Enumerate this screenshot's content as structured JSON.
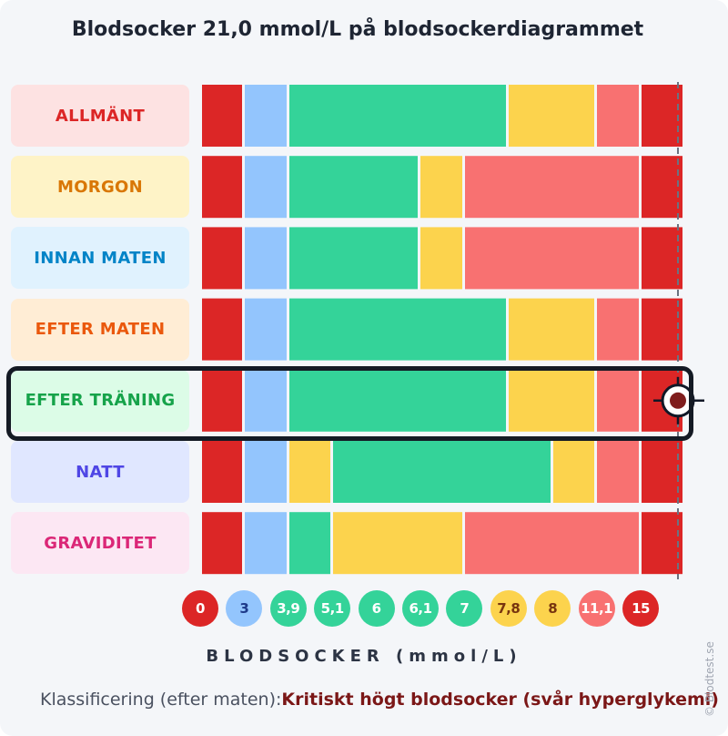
{
  "title": "Blodsocker 21,0 mmol/L på blodsockerdiagrammet",
  "xlabel": "BLODSOCKER (mmol/L)",
  "classification": {
    "label": "Klassificering (efter maten):",
    "value": "Kritiskt högt blodsocker (svår hyperglykemi)"
  },
  "watermark": "© Blodtest.se",
  "colors": {
    "red": "#dc2626",
    "blue": "#93c5fd",
    "green": "#34d399",
    "yellow": "#fcd34d",
    "salmon": "#f87171",
    "marker": "#7f1d1d"
  },
  "chart_data": {
    "type": "bar",
    "orientation": "horizontal-segmented",
    "value": 21.0,
    "unit": "mmol/L",
    "highlighted_row": "EFTER TRÄNING",
    "ticks": [
      {
        "label": "0",
        "color": "red"
      },
      {
        "label": "3",
        "color": "blue"
      },
      {
        "label": "3,9",
        "color": "green"
      },
      {
        "label": "5,1",
        "color": "green"
      },
      {
        "label": "6",
        "color": "green"
      },
      {
        "label": "6,1",
        "color": "green"
      },
      {
        "label": "7",
        "color": "green"
      },
      {
        "label": "7,8",
        "color": "yellow"
      },
      {
        "label": "8",
        "color": "yellow"
      },
      {
        "label": "11,1",
        "color": "salmon"
      },
      {
        "label": "15",
        "color": "red"
      }
    ],
    "rows": [
      {
        "label": "ALLMÄNT",
        "text_color": "#dc2626",
        "bg": "#fde2e2",
        "segments": [
          [
            "0",
            "3",
            "red"
          ],
          [
            "3",
            "3,9",
            "blue"
          ],
          [
            "3,9",
            "7,8",
            "green"
          ],
          [
            "7,8",
            "11,1",
            "yellow"
          ],
          [
            "11,1",
            "15",
            "salmon"
          ],
          [
            "15",
            "max",
            "red"
          ]
        ]
      },
      {
        "label": "MORGON",
        "text_color": "#d97706",
        "bg": "#fef3c7",
        "segments": [
          [
            "0",
            "3",
            "red"
          ],
          [
            "3",
            "3,9",
            "blue"
          ],
          [
            "3,9",
            "6",
            "green"
          ],
          [
            "6",
            "7",
            "yellow"
          ],
          [
            "7",
            "15",
            "salmon"
          ],
          [
            "15",
            "max",
            "red"
          ]
        ]
      },
      {
        "label": "INNAN MATEN",
        "text_color": "#0284c7",
        "bg": "#e0f2fe",
        "segments": [
          [
            "0",
            "3",
            "red"
          ],
          [
            "3",
            "3,9",
            "blue"
          ],
          [
            "3,9",
            "6",
            "green"
          ],
          [
            "6",
            "7",
            "yellow"
          ],
          [
            "7",
            "15",
            "salmon"
          ],
          [
            "15",
            "max",
            "red"
          ]
        ]
      },
      {
        "label": "EFTER MATEN",
        "text_color": "#ea580c",
        "bg": "#ffedd5",
        "segments": [
          [
            "0",
            "3",
            "red"
          ],
          [
            "3",
            "3,9",
            "blue"
          ],
          [
            "3,9",
            "7,8",
            "green"
          ],
          [
            "7,8",
            "11,1",
            "yellow"
          ],
          [
            "11,1",
            "15",
            "salmon"
          ],
          [
            "15",
            "max",
            "red"
          ]
        ]
      },
      {
        "label": "EFTER TRÄNING",
        "text_color": "#16a34a",
        "bg": "#dcfce7",
        "segments": [
          [
            "0",
            "3",
            "red"
          ],
          [
            "3",
            "3,9",
            "blue"
          ],
          [
            "3,9",
            "7,8",
            "green"
          ],
          [
            "7,8",
            "11,1",
            "yellow"
          ],
          [
            "11,1",
            "15",
            "salmon"
          ],
          [
            "15",
            "max",
            "red"
          ]
        ]
      },
      {
        "label": "NATT",
        "text_color": "#4f46e5",
        "bg": "#e0e7ff",
        "segments": [
          [
            "0",
            "3",
            "red"
          ],
          [
            "3",
            "3,9",
            "blue"
          ],
          [
            "3,9",
            "5,1",
            "yellow"
          ],
          [
            "5,1",
            "8",
            "green"
          ],
          [
            "8",
            "11,1",
            "yellow"
          ],
          [
            "11,1",
            "15",
            "salmon"
          ],
          [
            "15",
            "max",
            "red"
          ]
        ]
      },
      {
        "label": "GRAVIDITET",
        "text_color": "#db2777",
        "bg": "#fce7f3",
        "segments": [
          [
            "0",
            "3",
            "red"
          ],
          [
            "3",
            "3,9",
            "blue"
          ],
          [
            "3,9",
            "5,1",
            "green"
          ],
          [
            "5,1",
            "7",
            "yellow"
          ],
          [
            "7",
            "15",
            "salmon"
          ],
          [
            "15",
            "max",
            "red"
          ]
        ]
      }
    ]
  }
}
